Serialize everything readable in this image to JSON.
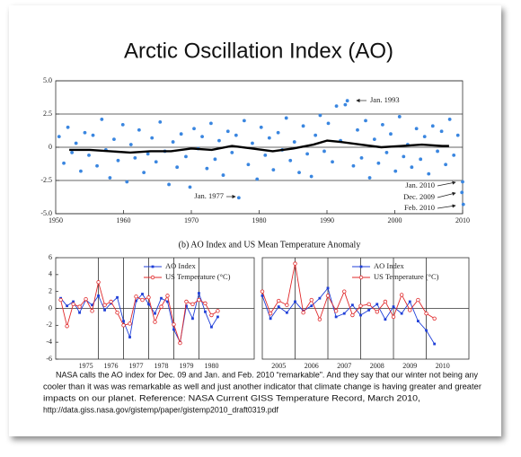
{
  "chart_data": [
    {
      "type": "scatter",
      "title": "Arctic Oscillation Index (AO)",
      "xlim": [
        1950,
        2010
      ],
      "xticks": [
        1950,
        1960,
        1970,
        1980,
        1990,
        2000,
        2010
      ],
      "ylim": [
        -5,
        5
      ],
      "yticks": [
        {
          "value": -5,
          "label": "-5.0"
        },
        {
          "value": -2.5,
          "label": "-2.5"
        },
        0,
        {
          "value": 2.5,
          "label": "2.5"
        },
        {
          "value": 5,
          "label": "5.0"
        }
      ],
      "grid": true,
      "series": [
        {
          "mode": "markers",
          "color": "#3a86e0",
          "x": [
            1950.5,
            1951.2,
            1951.8,
            1952.4,
            1953.0,
            1953.7,
            1954.3,
            1954.9,
            1955.5,
            1956.1,
            1956.8,
            1957.4,
            1958.0,
            1958.6,
            1959.2,
            1959.9,
            1960.5,
            1961.1,
            1961.7,
            1962.3,
            1963.0,
            1963.6,
            1964.2,
            1964.8,
            1965.4,
            1966.1,
            1966.7,
            1967.3,
            1967.9,
            1968.5,
            1969.2,
            1969.8,
            1970.4,
            1971.0,
            1971.6,
            1972.3,
            1972.9,
            1973.5,
            1974.1,
            1974.7,
            1975.4,
            1976.0,
            1976.6,
            1977.0,
            1977.8,
            1978.4,
            1979.0,
            1979.7,
            1980.3,
            1980.9,
            1981.5,
            1982.1,
            1982.8,
            1983.4,
            1984.0,
            1984.6,
            1985.2,
            1985.9,
            1986.5,
            1987.1,
            1987.7,
            1988.3,
            1989.0,
            1989.6,
            1990.2,
            1990.8,
            1991.4,
            1992.0,
            1992.7,
            1993.0,
            1993.9,
            1994.5,
            1995.1,
            1995.7,
            1996.3,
            1997.0,
            1997.6,
            1998.2,
            1998.8,
            1999.4,
            2000.1,
            2000.7,
            2001.3,
            2001.9,
            2002.5,
            2003.2,
            2003.8,
            2004.4,
            2005.0,
            2005.6,
            2006.3,
            2006.9,
            2007.5,
            2008.1,
            2008.7,
            2009.3,
            2009.9,
            2010.0,
            2010.1
          ],
          "values": [
            0.8,
            -1.2,
            1.5,
            -0.4,
            0.3,
            -1.8,
            1.1,
            -0.6,
            0.9,
            -1.4,
            2.1,
            -0.2,
            -2.3,
            0.6,
            -1.0,
            1.7,
            -2.6,
            0.2,
            -0.8,
            1.3,
            -1.9,
            -0.5,
            0.7,
            -1.1,
            1.9,
            -0.3,
            -2.8,
            0.4,
            -1.5,
            1.0,
            -0.7,
            -3.0,
            1.4,
            -0.1,
            0.8,
            -1.6,
            1.8,
            -0.9,
            0.5,
            -2.1,
            1.2,
            -0.4,
            0.9,
            -3.8,
            2.0,
            -1.3,
            0.3,
            -2.4,
            1.5,
            -0.6,
            0.7,
            -1.7,
            1.1,
            -0.2,
            2.2,
            -1.0,
            0.4,
            -1.9,
            1.6,
            -0.5,
            -2.2,
            0.9,
            2.4,
            -0.3,
            1.8,
            -1.1,
            3.1,
            0.5,
            3.2,
            3.5,
            -1.4,
            1.3,
            -0.8,
            2.0,
            -2.3,
            0.6,
            -1.2,
            1.7,
            -0.4,
            1.0,
            -1.8,
            2.3,
            -0.7,
            0.2,
            -1.5,
            1.4,
            -0.9,
            0.8,
            -2.0,
            1.6,
            -0.3,
            1.2,
            -1.3,
            2.1,
            -0.6,
            0.9,
            -3.4,
            -2.6,
            -4.3
          ]
        },
        {
          "mode": "lines",
          "color": "#000000",
          "x": [
            1952,
            1955,
            1958,
            1961,
            1964,
            1967,
            1970,
            1973,
            1976,
            1979,
            1982,
            1985,
            1988,
            1990,
            1992,
            1995,
            1998,
            2001,
            2004,
            2007,
            2008
          ],
          "values": [
            -0.2,
            -0.2,
            -0.3,
            -0.4,
            -0.3,
            -0.3,
            -0.1,
            -0.2,
            0.1,
            -0.1,
            -0.3,
            -0.1,
            0.2,
            0.5,
            0.4,
            0.2,
            0,
            0.1,
            0.2,
            0.1,
            0.1
          ]
        }
      ],
      "annotations": [
        "Jan. 1993",
        "Jan. 1977",
        "Jan. 2010",
        "Dec. 2009",
        "Feb. 2010"
      ]
    },
    {
      "type": "line",
      "categories": [
        "1975",
        "1976",
        "1977",
        "1978",
        "1979",
        "1980"
      ],
      "xlim": [
        1974.3,
        1982.2
      ],
      "ylim": [
        -6,
        6
      ],
      "yticks": [
        -6,
        -4,
        -2,
        0,
        2,
        4,
        6
      ],
      "x": [
        1974.5,
        1974.75,
        1975.0,
        1975.25,
        1975.5,
        1975.75,
        1976.0,
        1976.25,
        1976.5,
        1976.75,
        1977.0,
        1977.25,
        1977.5,
        1977.75,
        1978.0,
        1978.25,
        1978.5,
        1978.75,
        1979.0,
        1979.25,
        1979.5,
        1979.75,
        1980.0,
        1980.25,
        1980.5,
        1980.75
      ],
      "series": [
        {
          "name": "AO Index",
          "color": "#1f3fd8",
          "values": [
            1.2,
            0.3,
            0.8,
            -0.5,
            1.0,
            0.4,
            1.5,
            -0.2,
            0.6,
            1.3,
            -1.5,
            -3.4,
            0.9,
            1.7,
            0.5,
            -0.6,
            1.2,
            0.8,
            -2.5,
            -4.0,
            0.3,
            -1.2,
            1.8,
            -0.4,
            -2.2,
            -1.0
          ]
        },
        {
          "name": "US Temperature (°C)",
          "color": "#e0282a",
          "values": [
            1.0,
            -2.1,
            0.5,
            0.2,
            1.1,
            -0.3,
            3.1,
            0.4,
            0.8,
            -0.5,
            -2.0,
            -1.8,
            1.4,
            1.0,
            1.3,
            -1.6,
            0.2,
            1.5,
            -1.9,
            -4.1,
            0.8,
            0.5,
            1.0,
            0.6,
            -0.8,
            -0.3
          ]
        }
      ]
    },
    {
      "type": "line",
      "categories": [
        "2005",
        "2006",
        "2007",
        "2008",
        "2009",
        "2010"
      ],
      "xlim": [
        2005,
        2011.3
      ],
      "ylim": [
        -6,
        6
      ],
      "x": [
        2005.0,
        2005.25,
        2005.5,
        2005.75,
        2006.0,
        2006.25,
        2006.5,
        2006.75,
        2007.0,
        2007.25,
        2007.5,
        2007.75,
        2008.0,
        2008.25,
        2008.5,
        2008.75,
        2009.0,
        2009.25,
        2009.5,
        2009.75,
        2010.0,
        2010.25
      ],
      "series": [
        {
          "name": "AO Index",
          "color": "#1f3fd8",
          "values": [
            1.5,
            -1.2,
            0.2,
            -0.5,
            0.8,
            -0.3,
            0.3,
            1.2,
            2.4,
            -1.0,
            -0.6,
            0.4,
            -0.8,
            -0.2,
            0.5,
            -1.3,
            0.2,
            -0.6,
            0.8,
            -1.5,
            -2.6,
            -4.2
          ]
        },
        {
          "name": "US Temperature (°C)",
          "color": "#e0282a",
          "values": [
            2.0,
            -0.6,
            0.9,
            0.4,
            5.3,
            -0.5,
            1.0,
            -1.3,
            1.5,
            -0.3,
            2.0,
            -0.8,
            0.3,
            0.5,
            -0.4,
            0.8,
            -1.0,
            1.6,
            -0.2,
            1.0,
            -0.6,
            -1.2
          ]
        }
      ]
    }
  ],
  "section_title": "(b)  AO Index and US Mean Temperature Anomaly",
  "caption": [
    "NASA calls the AO index for Dec. 09 and Jan. and Feb. 2010 “remarkable”. And they say that our winter not being any",
    "cooler than it was was remarkable as well and just another indicator that climate change is having greater and greater",
    "impacts on our planet.  Reference: NASA Current GISS Temperature Record, March 2010,",
    "http://data.giss.nasa.gov/gistemp/paper/gistemp2010_draft0319.pdf"
  ]
}
